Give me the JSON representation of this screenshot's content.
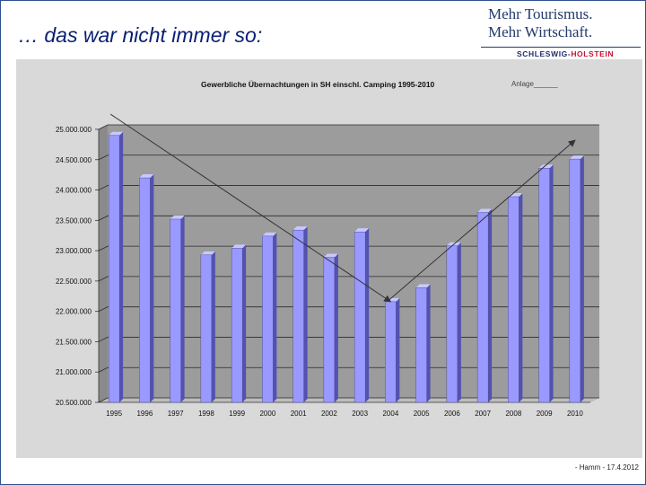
{
  "slide": {
    "title": "… das war nicht immer so:",
    "footer": "- Hamm - 17.4.2012"
  },
  "logo": {
    "line1": "Mehr Tourismus.",
    "line2": "Mehr Wirtschaft.",
    "band_left": "SCHLESWIG-",
    "band_right": "HOLSTEIN",
    "accent_color": "#c8102e",
    "brand_color": "#233a6b"
  },
  "chart_data": {
    "type": "bar",
    "title": "Gewerbliche Übernachtungen in SH einschl. Camping 1995-2010",
    "annotation": "Anlage______",
    "categories": [
      "1995",
      "1996",
      "1997",
      "1998",
      "1999",
      "2000",
      "2001",
      "2002",
      "2003",
      "2004",
      "2005",
      "2006",
      "2007",
      "2008",
      "2009",
      "2010"
    ],
    "values": [
      24900000,
      24200000,
      23520000,
      22930000,
      23040000,
      23240000,
      23340000,
      22890000,
      23310000,
      22160000,
      22390000,
      23080000,
      23630000,
      23890000,
      24360000,
      24510000
    ],
    "ylim": [
      20500000,
      25000000
    ],
    "yticks": [
      "20.500.000",
      "21.000.000",
      "21.500.000",
      "22.000.000",
      "22.500.000",
      "23.000.000",
      "23.500.000",
      "24.000.000",
      "24.500.000",
      "25.000.000"
    ],
    "ytick_values": [
      20500000,
      21000000,
      21500000,
      22000000,
      22500000,
      23000000,
      23500000,
      24000000,
      24500000,
      25000000
    ],
    "grid": true,
    "bar_color": "#9999ff",
    "trend_arrows": [
      {
        "from": [
          "1995",
          25250000
        ],
        "to": [
          "2004",
          22160000
        ]
      },
      {
        "from": [
          "2004",
          22160000
        ],
        "to": [
          "2010",
          24820000
        ]
      }
    ]
  }
}
